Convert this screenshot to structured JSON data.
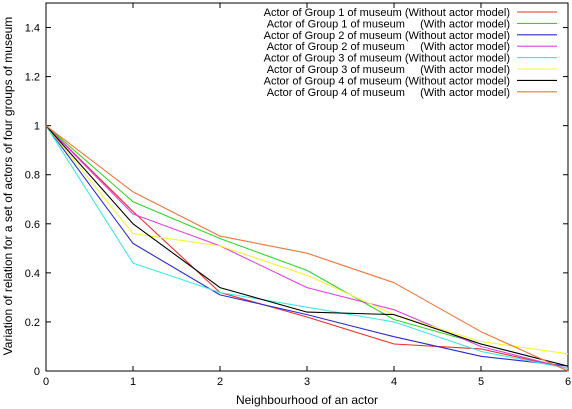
{
  "chart_data": {
    "type": "line",
    "title": "",
    "xlabel": "Neighbourhood of an actor",
    "ylabel": "Variation of relation for a set of actors of four groups of museum",
    "xlim": [
      0,
      6
    ],
    "ylim": [
      0,
      1.5
    ],
    "xticks": [
      0,
      1,
      2,
      3,
      4,
      5,
      6
    ],
    "yticks": [
      0,
      0.2,
      0.4,
      0.6,
      0.8,
      1,
      1.2,
      1.4
    ],
    "grid": false,
    "legend_position": "top-right",
    "x": [
      0,
      1,
      2,
      3,
      4,
      5,
      6
    ],
    "series": [
      {
        "name": "Actor of Group 1 of museum (Without actor model)",
        "color": "#e8302a",
        "values": [
          1.0,
          0.65,
          0.32,
          0.22,
          0.11,
          0.09,
          0.01
        ]
      },
      {
        "name": "Actor of Group 1 of museum     (With actor model)",
        "color": "#2fd42f",
        "values": [
          1.0,
          0.69,
          0.54,
          0.41,
          0.21,
          0.11,
          0.02
        ]
      },
      {
        "name": "Actor of Group 2 of museum (Without actor model)",
        "color": "#2b2bd0",
        "values": [
          1.0,
          0.52,
          0.31,
          0.23,
          0.14,
          0.06,
          0.02
        ]
      },
      {
        "name": "Actor of Group 2 of museum     (With actor model)",
        "color": "#e040e0",
        "values": [
          1.0,
          0.64,
          0.51,
          0.34,
          0.25,
          0.1,
          0.01
        ]
      },
      {
        "name": "Actor of Group 3 of museum (Without actor model)",
        "color": "#3ee8e8",
        "values": [
          1.0,
          0.44,
          0.32,
          0.26,
          0.2,
          0.08,
          0.01
        ]
      },
      {
        "name": "Actor of Group 3 of museum     (With actor model)",
        "color": "#f4f43a",
        "values": [
          1.0,
          0.56,
          0.51,
          0.39,
          0.23,
          0.12,
          0.07
        ]
      },
      {
        "name": "Actor of Group 4 of museum (Without actor model)",
        "color": "#000000",
        "values": [
          1.0,
          0.6,
          0.34,
          0.24,
          0.23,
          0.11,
          0.02
        ]
      },
      {
        "name": "Actor of Group 4 of museum     (With actor model)",
        "color": "#f0743a",
        "values": [
          1.0,
          0.73,
          0.55,
          0.48,
          0.36,
          0.16,
          0.0
        ]
      }
    ]
  }
}
